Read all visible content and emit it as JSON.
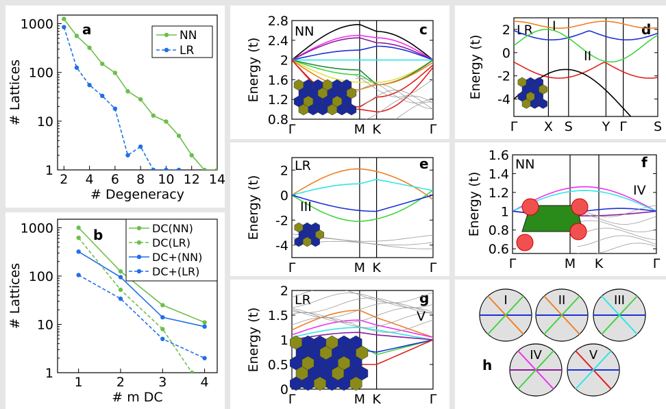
{
  "chart_data": [
    {
      "panel": "a",
      "type": "line",
      "yscale": "log",
      "xlabel": "# Degeneracy",
      "ylabel": "# Lattices",
      "xlim": [
        1.5,
        14
      ],
      "ylim": [
        1,
        1500
      ],
      "xticks": [
        "2",
        "4",
        "6",
        "8",
        "10",
        "12",
        "14"
      ],
      "yticks": [
        "1",
        "10",
        "100",
        "1000"
      ],
      "legend": "top-right",
      "series": [
        {
          "name": "NN",
          "color": "#6cbf4a",
          "dash": false,
          "x": [
            2,
            3,
            4,
            5,
            6,
            7,
            8,
            9,
            10,
            11,
            12,
            13,
            14
          ],
          "y": [
            1250,
            560,
            320,
            150,
            98,
            41,
            28,
            13,
            9.8,
            5,
            2,
            1,
            1
          ]
        },
        {
          "name": "LR",
          "color": "#1f6fe8",
          "dash": true,
          "x": [
            2,
            3,
            4,
            5,
            6,
            7,
            8,
            9,
            10,
            11
          ],
          "y": [
            850,
            125,
            55,
            33,
            18,
            2,
            3,
            1,
            1,
            1
          ]
        }
      ]
    },
    {
      "panel": "b",
      "type": "line",
      "yscale": "log",
      "xlabel": "# m DC",
      "ylabel": "# Lattices",
      "xlim": [
        0.5,
        4.3
      ],
      "ylim": [
        1,
        1500
      ],
      "xticks": [
        "1",
        "2",
        "3",
        "4"
      ],
      "yticks": [
        "1",
        "10",
        "100",
        "1000"
      ],
      "legend": "top-right",
      "series": [
        {
          "name": "DC(NN)",
          "color": "#6cbf4a",
          "dash": false,
          "x": [
            1,
            2,
            3,
            4
          ],
          "y": [
            1000,
            125,
            25,
            11
          ]
        },
        {
          "name": "DC(LR)",
          "color": "#6cbf4a",
          "dash": true,
          "x": [
            1,
            2,
            3,
            3.7
          ],
          "y": [
            620,
            52,
            8,
            1
          ]
        },
        {
          "name": "DC+(NN)",
          "color": "#1f6fe8",
          "dash": false,
          "x": [
            1,
            2,
            3,
            4
          ],
          "y": [
            320,
            95,
            14,
            9
          ]
        },
        {
          "name": "DC+(LR)",
          "color": "#1f6fe8",
          "dash": true,
          "x": [
            1,
            2,
            3,
            4
          ],
          "y": [
            105,
            34,
            5,
            2
          ]
        }
      ]
    },
    {
      "panel": "c",
      "type": "line",
      "label": "NN",
      "ylabel": "Energy (t)",
      "ylim": [
        0.8,
        2.8
      ],
      "yticks": [
        "0.8",
        "1.2",
        "1.6",
        "2",
        "2.4",
        "2.8"
      ],
      "xticks": [
        "Γ",
        "M",
        "K",
        "Γ"
      ]
    },
    {
      "panel": "d",
      "type": "line",
      "label": "LR",
      "ylabel": "Energy (t)",
      "ylim": [
        -5.5,
        3
      ],
      "yticks": [
        "-4",
        "-2",
        "0",
        "2"
      ],
      "xticks": [
        "Γ",
        "X",
        "S",
        "Y",
        "Γ",
        "S"
      ],
      "annotations": [
        "I",
        "II"
      ]
    },
    {
      "panel": "e",
      "type": "line",
      "label": "LR",
      "ylabel": "Energy (t)",
      "ylim": [
        -5,
        3
      ],
      "yticks": [
        "-4",
        "-2",
        "0",
        "2"
      ],
      "xticks": [
        "Γ",
        "M",
        "K",
        "Γ"
      ],
      "annotations": [
        "III"
      ]
    },
    {
      "panel": "f",
      "type": "line",
      "label": "NN",
      "ylabel": "Energy (t)",
      "ylim": [
        0.55,
        1.6
      ],
      "yticks": [
        "0.6",
        "0.8",
        "1",
        "1.2",
        "1.4",
        "1.6"
      ],
      "xticks": [
        "Γ",
        "M",
        "K",
        "Γ"
      ],
      "annotations": [
        "IV"
      ]
    },
    {
      "panel": "g",
      "type": "line",
      "label": "LR",
      "ylabel": "Energy (t)",
      "ylim": [
        0,
        2
      ],
      "yticks": [
        "0",
        "0.5",
        "1",
        "1.5",
        "2"
      ],
      "xticks": [
        "Γ",
        "M",
        "K",
        "Γ"
      ],
      "annotations": [
        "V"
      ]
    },
    {
      "panel": "h",
      "type": "diagram",
      "labels": [
        "I",
        "II",
        "III",
        "IV",
        "V"
      ]
    }
  ]
}
